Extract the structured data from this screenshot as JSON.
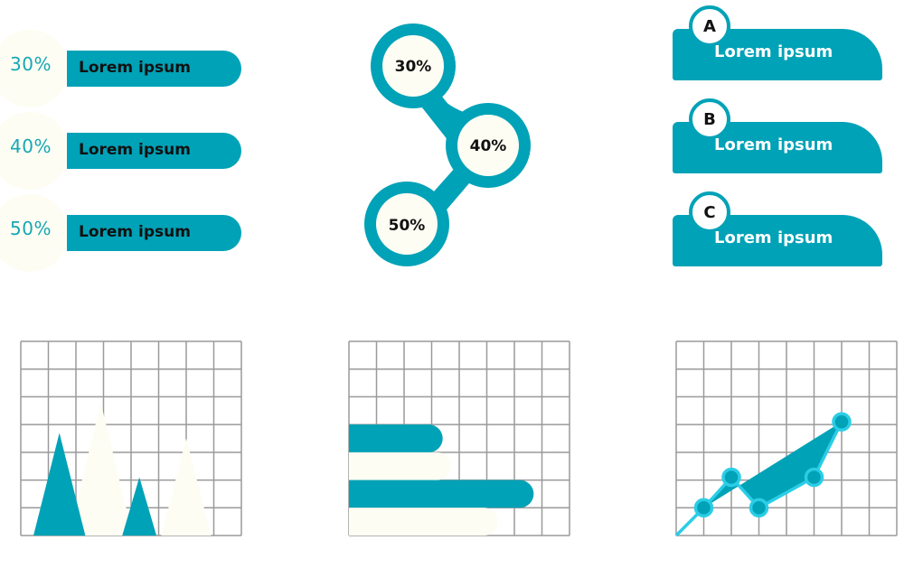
{
  "percent_bars": [
    {
      "pct": "30%",
      "label": "Lorem ipsum"
    },
    {
      "pct": "40%",
      "label": "Lorem ipsum"
    },
    {
      "pct": "50%",
      "label": "Lorem ipsum"
    }
  ],
  "chain": [
    "30%",
    "40%",
    "50%"
  ],
  "cards": [
    {
      "letter": "A",
      "label": "Lorem ipsum"
    },
    {
      "letter": "B",
      "label": "Lorem ipsum"
    },
    {
      "letter": "C",
      "label": "Lorem ipsum"
    }
  ],
  "colors": {
    "accent": "#00a2b7",
    "cream": "#fdfdf3",
    "line": "#2bcde6",
    "grid": "#9a9a9a"
  },
  "chart_data": [
    {
      "type": "area",
      "subtype": "triangle-peaks",
      "grid": {
        "cols": 8,
        "rows": 7
      },
      "ylim": [
        0,
        7
      ],
      "xlim": [
        0,
        8
      ],
      "series": [
        {
          "color": "#00a2b7",
          "peaks": [
            {
              "x": 1.4,
              "value": 3.7
            },
            {
              "x": 4.3,
              "value": 2.1
            }
          ]
        },
        {
          "color": "#fdfdf3",
          "peaks": [
            {
              "x": 2.9,
              "value": 4.8
            },
            {
              "x": 6.0,
              "value": 3.5
            }
          ]
        }
      ]
    },
    {
      "type": "bar",
      "orientation": "horizontal",
      "grid": {
        "cols": 8,
        "rows": 7
      },
      "xlim": [
        0,
        8
      ],
      "bars": [
        {
          "value": 3.4,
          "color": "#00a2b7"
        },
        {
          "value": 3.7,
          "color": "#fdfdf3"
        },
        {
          "value": 6.7,
          "color": "#00a2b7"
        },
        {
          "value": 5.4,
          "color": "#fdfdf3"
        }
      ]
    },
    {
      "type": "line",
      "grid": {
        "cols": 8,
        "rows": 7
      },
      "xlim": [
        0,
        8
      ],
      "ylim": [
        0,
        7
      ],
      "points": [
        [
          0,
          0
        ],
        [
          1,
          1
        ],
        [
          2,
          2.1
        ],
        [
          3,
          1
        ],
        [
          5,
          2.1
        ],
        [
          6,
          4.1
        ]
      ],
      "markers": [
        1,
        2,
        3,
        4,
        5
      ],
      "band_color": "#00a2b7",
      "line_color": "#2bcde6"
    }
  ]
}
